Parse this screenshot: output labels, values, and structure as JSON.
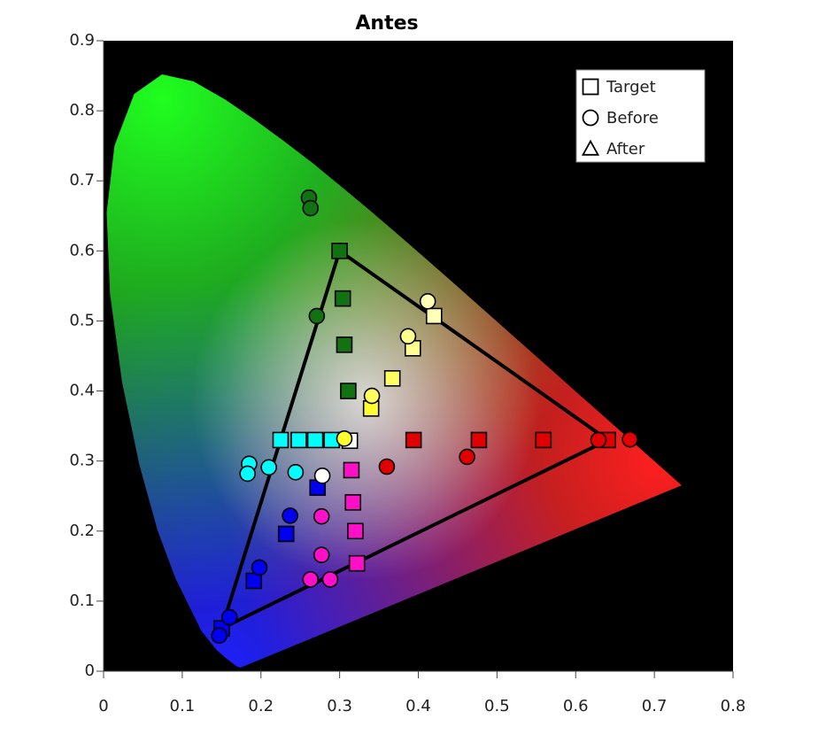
{
  "chart_data": {
    "type": "scatter",
    "title": "Antes",
    "xlim": [
      0,
      0.8
    ],
    "ylim": [
      0,
      0.9
    ],
    "xticks": [
      0,
      0.1,
      0.2,
      0.3,
      0.4,
      0.5,
      0.6,
      0.7,
      0.8
    ],
    "yticks": [
      0,
      0.1,
      0.2,
      0.3,
      0.4,
      0.5,
      0.6,
      0.7,
      0.8,
      0.9
    ],
    "background": "#000000",
    "legend": "upper right",
    "series": [
      {
        "name": "Target",
        "marker": "square",
        "x": [
          0.3,
          0.304,
          0.306,
          0.311,
          0.42,
          0.393,
          0.367,
          0.34,
          0.641,
          0.559,
          0.477,
          0.394,
          0.313,
          0.29,
          0.269,
          0.248,
          0.225,
          0.315,
          0.317,
          0.32,
          0.322,
          0.272,
          0.232,
          0.191,
          0.15
        ],
        "y": [
          0.6,
          0.532,
          0.466,
          0.4,
          0.507,
          0.461,
          0.418,
          0.375,
          0.33,
          0.33,
          0.33,
          0.33,
          0.329,
          0.33,
          0.33,
          0.33,
          0.33,
          0.287,
          0.241,
          0.2,
          0.154,
          0.262,
          0.196,
          0.129,
          0.061
        ],
        "colors": [
          "#127212",
          "#127212",
          "#127212",
          "#127212",
          "#ffffb8",
          "#ffff90",
          "#ffff60",
          "#ffff30",
          "#e00000",
          "#e00000",
          "#e00000",
          "#e00000",
          "#ffffff",
          "#00ffff",
          "#00ffff",
          "#00ffff",
          "#00ffff",
          "#ff10c8",
          "#ff10c8",
          "#ff10c8",
          "#ff10c8",
          "#0000f0",
          "#0000f0",
          "#0000f0",
          "#0000f0"
        ]
      },
      {
        "name": "Before",
        "marker": "circle",
        "x": [
          0.261,
          0.263,
          0.271,
          0.412,
          0.387,
          0.341,
          0.306,
          0.278,
          0.36,
          0.462,
          0.629,
          0.669,
          0.185,
          0.183,
          0.21,
          0.244,
          0.237,
          0.198,
          0.16,
          0.147,
          0.277,
          0.277,
          0.263,
          0.288
        ],
        "y": [
          0.676,
          0.661,
          0.507,
          0.528,
          0.478,
          0.393,
          0.332,
          0.279,
          0.292,
          0.306,
          0.33,
          0.331,
          0.296,
          0.282,
          0.291,
          0.284,
          0.222,
          0.148,
          0.077,
          0.051,
          0.221,
          0.166,
          0.131,
          0.131
        ],
        "colors": [
          "#127212",
          "#127212",
          "#127212",
          "#ffffb8",
          "#ffff90",
          "#ffff60",
          "#ffff30",
          "#ffffff",
          "#e00000",
          "#e00000",
          "#e00000",
          "#e00000",
          "#00ffff",
          "#00ffff",
          "#00ffff",
          "#00ffff",
          "#0000f0",
          "#0000f0",
          "#0000f0",
          "#0000f0",
          "#ff10c8",
          "#ff10c8",
          "#ff10c8",
          "#ff10c8"
        ]
      },
      {
        "name": "After",
        "marker": "triangle",
        "x": [],
        "y": [],
        "colors": []
      }
    ]
  }
}
